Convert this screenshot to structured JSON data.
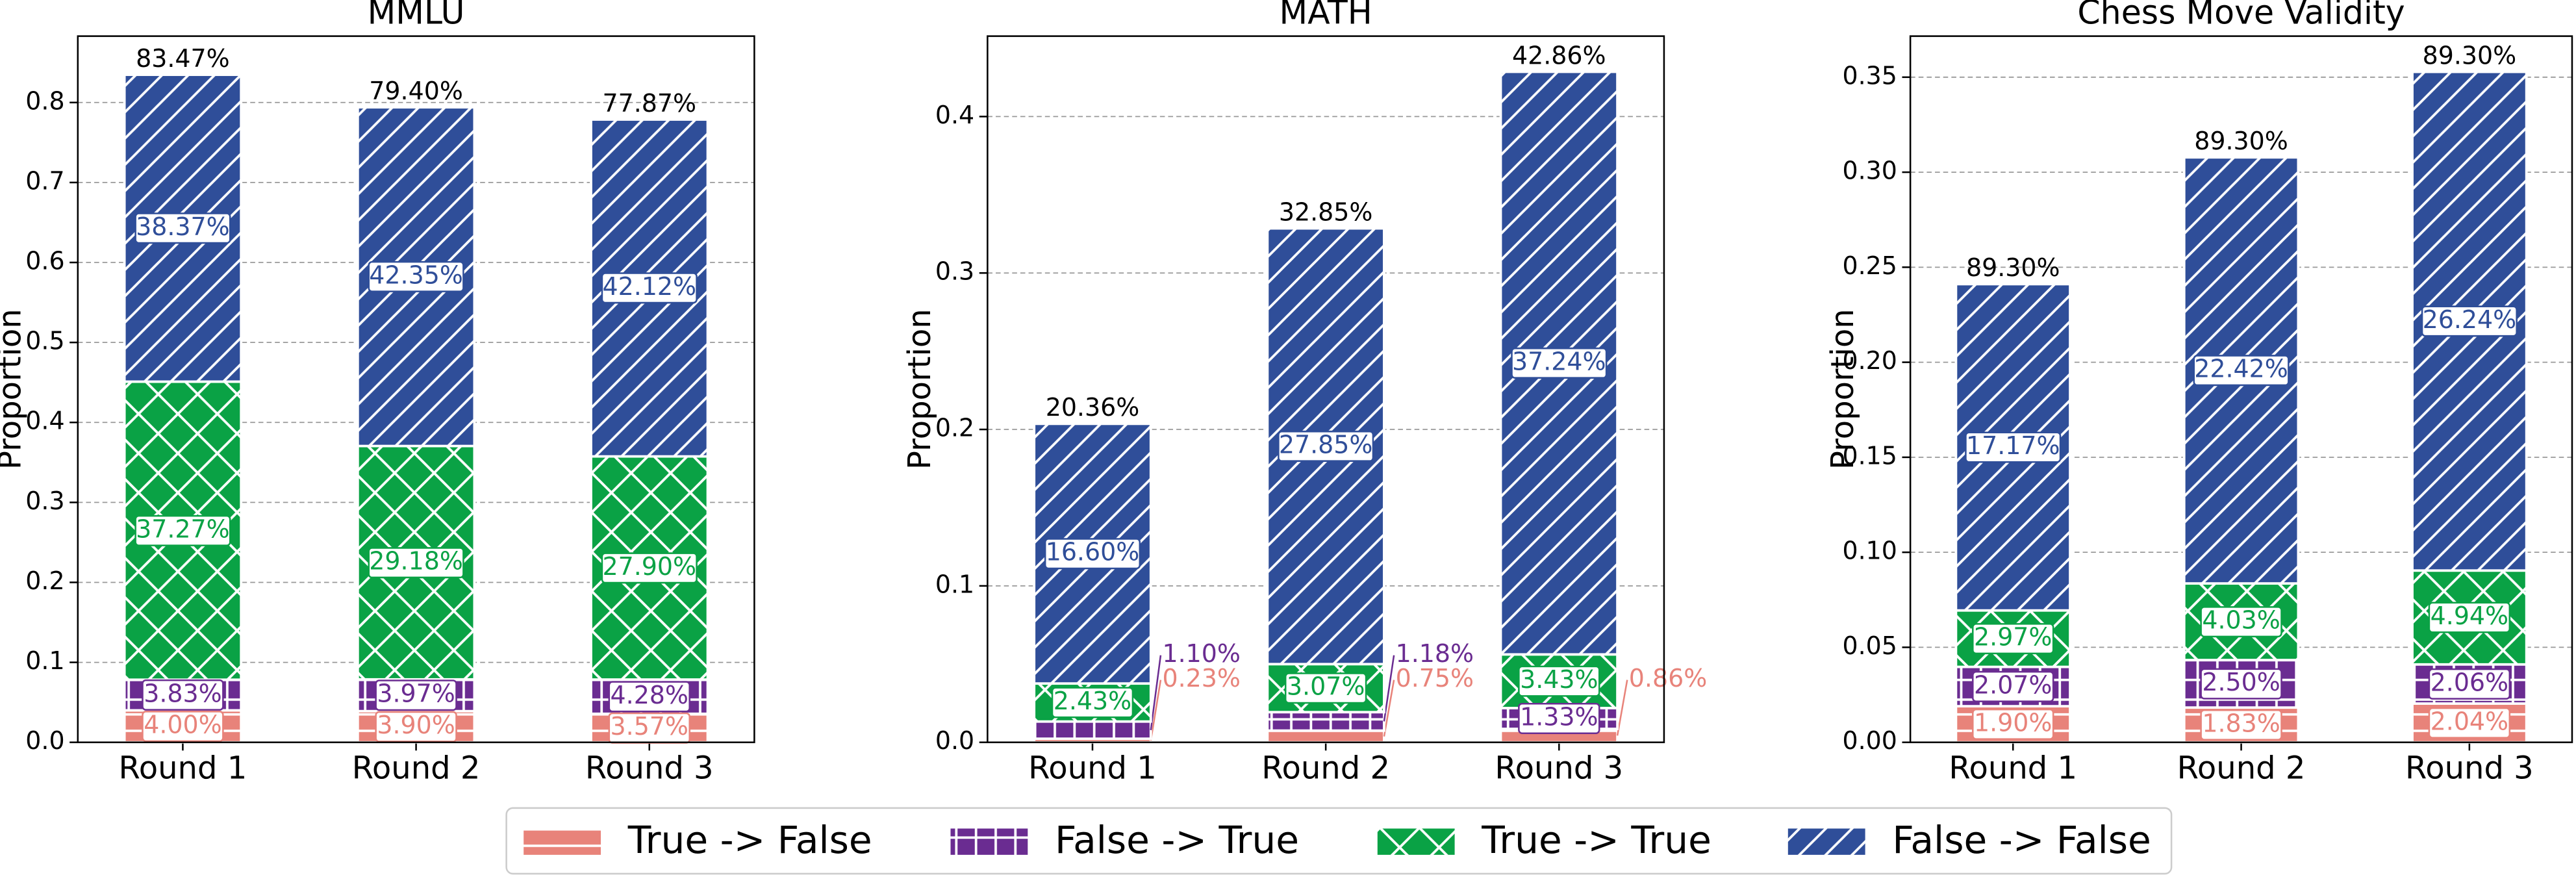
{
  "chart_data": [
    {
      "type": "bar",
      "stacked": true,
      "title": "MMLU",
      "ylabel": "Proportion",
      "categories": [
        "Round 1",
        "Round 2",
        "Round 3"
      ],
      "ylim": [
        0,
        0.883
      ],
      "yticks": [
        {
          "value": 0,
          "label": "0.0"
        },
        0.1,
        0.2,
        0.3,
        0.4,
        0.5,
        0.6,
        0.7,
        0.8
      ],
      "grid": true,
      "top_labels": [
        "83.47%",
        "79.40%",
        "77.87%"
      ],
      "series": [
        {
          "name": "True -> False",
          "color": "#e8837a",
          "hatch": "-",
          "values": [
            0.04,
            0.039,
            0.0357
          ],
          "value_labels": [
            "4.00%",
            "3.90%",
            "3.57%"
          ]
        },
        {
          "name": "False -> True",
          "color": "#6a2c91",
          "hatch": "+",
          "values": [
            0.0383,
            0.0397,
            0.0428
          ],
          "value_labels": [
            "3.83%",
            "3.97%",
            "4.28%"
          ]
        },
        {
          "name": "True -> True",
          "color": "#0aa245",
          "hatch": "x",
          "values": [
            0.3727,
            0.2918,
            0.279
          ],
          "value_labels": [
            "37.27%",
            "29.18%",
            "27.90%"
          ]
        },
        {
          "name": "False -> False",
          "color": "#2f4e99",
          "hatch": "/",
          "values": [
            0.3837,
            0.4235,
            0.4212
          ],
          "value_labels": [
            "38.37%",
            "42.35%",
            "42.12%"
          ]
        }
      ]
    },
    {
      "type": "bar",
      "stacked": true,
      "title": "MATH",
      "ylabel": "Proportion",
      "categories": [
        "Round 1",
        "Round 2",
        "Round 3"
      ],
      "ylim": [
        0,
        0.4514
      ],
      "yticks": [
        {
          "value": 0,
          "label": "0.0"
        },
        0.1,
        0.2,
        0.3,
        0.4
      ],
      "grid": true,
      "top_labels": [
        "20.36%",
        "32.85%",
        "42.86%"
      ],
      "series": [
        {
          "name": "True -> False",
          "color": "#e8837a",
          "hatch": "-",
          "values": [
            0.0023,
            0.0075,
            0.0086
          ],
          "value_labels": [
            "0.23%",
            "0.75%",
            "0.86%"
          ]
        },
        {
          "name": "False -> True",
          "color": "#6a2c91",
          "hatch": "+",
          "values": [
            0.011,
            0.0118,
            0.0133
          ],
          "value_labels": [
            "1.10%",
            "1.18%",
            "1.33%"
          ]
        },
        {
          "name": "True -> True",
          "color": "#0aa245",
          "hatch": "x",
          "values": [
            0.0243,
            0.0307,
            0.0343
          ],
          "value_labels": [
            "2.43%",
            "3.07%",
            "3.43%"
          ]
        },
        {
          "name": "False -> False",
          "color": "#2f4e99",
          "hatch": "/",
          "values": [
            0.166,
            0.2785,
            0.3724
          ],
          "value_labels": [
            "16.60%",
            "27.85%",
            "37.24%"
          ]
        }
      ]
    },
    {
      "type": "bar",
      "stacked": true,
      "title": "Chess Move Validity",
      "ylabel": "Proportion",
      "categories": [
        "Round 1",
        "Round 2",
        "Round 3"
      ],
      "ylim": [
        0,
        0.3716
      ],
      "yticks": [
        {
          "value": 0,
          "label": "0.00"
        },
        0.05,
        {
          "value": 0.1,
          "label": "0.10"
        },
        0.15,
        {
          "value": 0.2,
          "label": "0.20"
        },
        0.25,
        {
          "value": 0.3,
          "label": "0.30"
        },
        0.35
      ],
      "grid": true,
      "top_labels": [
        "89.30%",
        "89.30%",
        "89.30%"
      ],
      "series": [
        {
          "name": "True -> False",
          "color": "#e8837a",
          "hatch": "-",
          "values": [
            0.019,
            0.0183,
            0.0204
          ],
          "value_labels": [
            "1.90%",
            "1.83%",
            "2.04%"
          ]
        },
        {
          "name": "False -> True",
          "color": "#6a2c91",
          "hatch": "+",
          "values": [
            0.0207,
            0.025,
            0.0206
          ],
          "value_labels": [
            "2.07%",
            "2.50%",
            "2.06%"
          ]
        },
        {
          "name": "True -> True",
          "color": "#0aa245",
          "hatch": "x",
          "values": [
            0.0297,
            0.0403,
            0.0494
          ],
          "value_labels": [
            "2.97%",
            "4.03%",
            "4.94%"
          ]
        },
        {
          "name": "False -> False",
          "color": "#2f4e99",
          "hatch": "/",
          "values": [
            0.1717,
            0.2242,
            0.2624
          ],
          "value_labels": [
            "17.17%",
            "22.42%",
            "26.24%"
          ]
        }
      ]
    }
  ]
}
